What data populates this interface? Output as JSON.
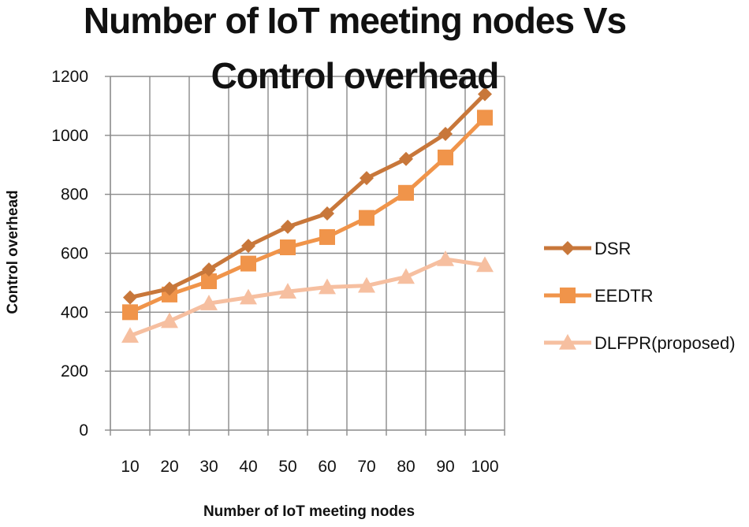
{
  "chart_data": {
    "type": "line",
    "title_lines": [
      "Number of IoT meeting nodes Vs",
      "Control overhead"
    ],
    "xlabel": "Number of IoT meeting nodes",
    "ylabel": "Control overhead",
    "categories": [
      "10",
      "20",
      "30",
      "40",
      "50",
      "60",
      "70",
      "80",
      "90",
      "100"
    ],
    "ylim": [
      0,
      1200
    ],
    "yticks": [
      "0",
      "200",
      "400",
      "600",
      "800",
      "1000",
      "1200"
    ],
    "grid": true,
    "legend_position": "right",
    "series": [
      {
        "name": "DSR",
        "marker": "diamond",
        "color": "#c8773a",
        "values": [
          450,
          480,
          545,
          625,
          690,
          735,
          855,
          920,
          1005,
          1140
        ]
      },
      {
        "name": "EEDTR",
        "marker": "square",
        "color": "#f0944a",
        "values": [
          400,
          460,
          505,
          565,
          620,
          655,
          720,
          805,
          925,
          1060
        ]
      },
      {
        "name": "DLFPR(proposed)",
        "marker": "triangle",
        "color": "#f6bfa0",
        "values": [
          320,
          370,
          430,
          450,
          470,
          485,
          490,
          520,
          580,
          560
        ]
      }
    ]
  }
}
